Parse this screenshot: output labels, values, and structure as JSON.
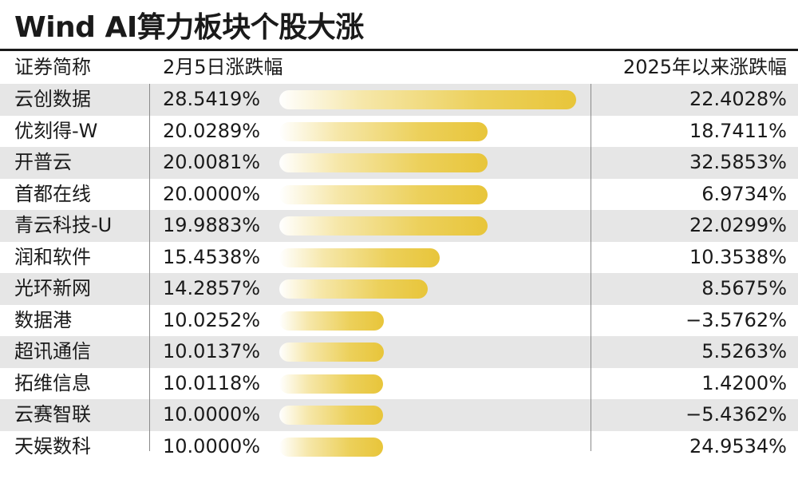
{
  "title": "Wind AI算力板块个股大涨",
  "chart_data": {
    "type": "bar",
    "title": "Wind AI算力板块个股大涨",
    "columns": [
      "证券简称",
      "2月5日涨跌幅",
      "2025年以来涨跌幅"
    ],
    "categories": [
      "云创数据",
      "优刻得-W",
      "开普云",
      "首都在线",
      "青云科技-U",
      "润和软件",
      "光环新网",
      "数据港",
      "超讯通信",
      "拓维信息",
      "云赛智联",
      "天娱数科"
    ],
    "series": [
      {
        "name": "2月5日涨跌幅",
        "values": [
          28.5419,
          20.0289,
          20.0081,
          20.0,
          19.9883,
          15.4538,
          14.2857,
          10.0252,
          10.0137,
          10.0118,
          10.0,
          10.0
        ],
        "labels": [
          "28.5419%",
          "20.0289%",
          "20.0081%",
          "20.0000%",
          "19.9883%",
          "15.4538%",
          "14.2857%",
          "10.0252%",
          "10.0137%",
          "10.0118%",
          "10.0000%",
          "10.0000%"
        ]
      },
      {
        "name": "2025年以来涨跌幅",
        "values": [
          22.4028,
          18.7411,
          32.5853,
          6.9734,
          22.0299,
          10.3538,
          8.5675,
          -3.5762,
          5.5263,
          1.42,
          -5.4362,
          24.9534
        ],
        "labels": [
          "22.4028%",
          "18.7411%",
          "32.5853%",
          "6.9734%",
          "22.0299%",
          "10.3538%",
          "8.5675%",
          "−3.5762%",
          "5.5263%",
          "1.4200%",
          "−5.4362%",
          "24.9534%"
        ]
      }
    ],
    "bar_series": "2月5日涨跌幅",
    "colors": {
      "bar_start": "#ffffff",
      "bar_end": "#e8c53a",
      "row_stripe": "#e6e6e6",
      "text": "#1a1a1a"
    },
    "grid": false
  }
}
